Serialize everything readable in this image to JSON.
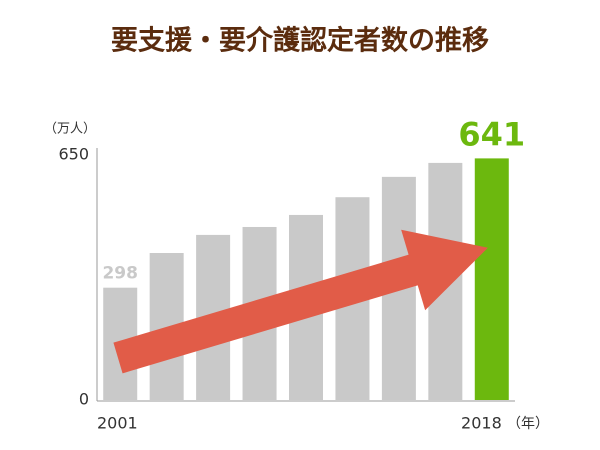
{
  "chart_data": {
    "type": "bar",
    "title": "要支援・要介護認定者数の推移",
    "y_unit_label": "（万人）",
    "x_unit_label": "（年）",
    "categories": [
      "2001",
      null,
      null,
      null,
      null,
      null,
      null,
      null,
      "2018"
    ],
    "values": [
      298,
      390,
      438,
      459,
      491,
      538,
      592,
      629,
      641
    ],
    "value_labels": [
      "298",
      null,
      null,
      null,
      null,
      null,
      null,
      null,
      "641"
    ],
    "colors": [
      "#c9c9c9",
      "#c9c9c9",
      "#c9c9c9",
      "#c9c9c9",
      "#c9c9c9",
      "#c9c9c9",
      "#c9c9c9",
      "#c9c9c9",
      "#6cb80e"
    ],
    "ylim": [
      0,
      650
    ],
    "yticks": [
      0,
      650
    ],
    "grid": false
  }
}
